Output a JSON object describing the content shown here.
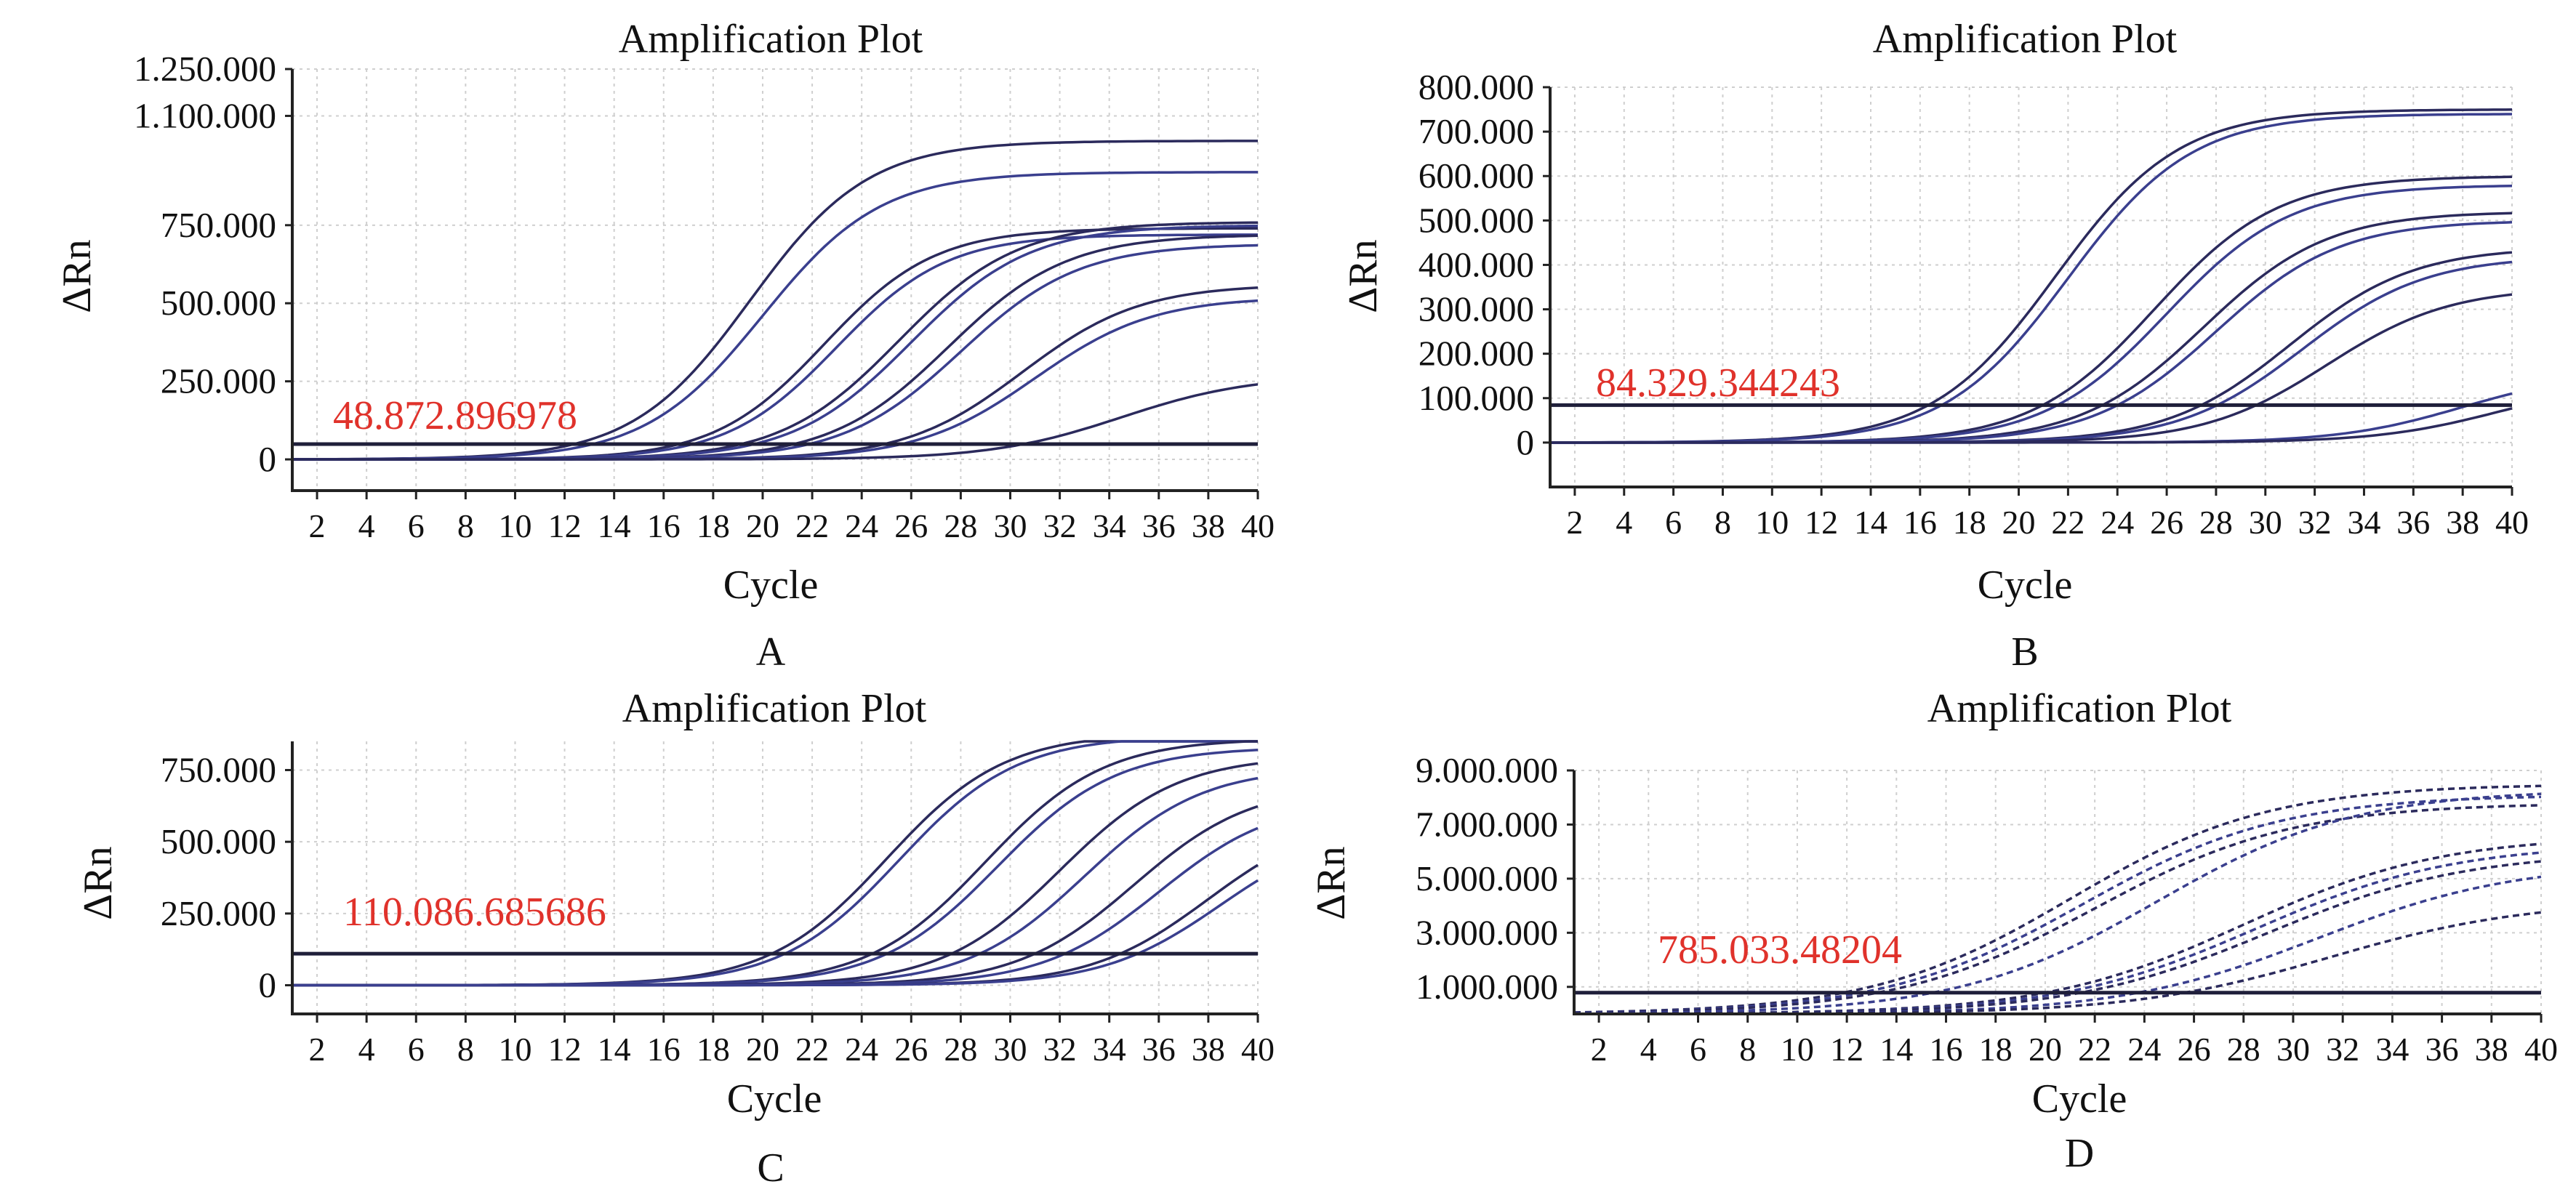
{
  "colors": {
    "curve": "#2b2a5c",
    "curve_alt": "#3a3f8e",
    "threshold": "#1f1f3a",
    "threshold_label": "#e0322b",
    "axis": "#222222",
    "grid": "#cfcfcf"
  },
  "chart_data": [
    {
      "type": "line",
      "panel_label": "A",
      "title": "Amplification Plot",
      "xlabel": "Cycle",
      "ylabel": "ΔRn",
      "xlim": [
        1,
        40
      ],
      "ylim": [
        -100000,
        1250000
      ],
      "x_ticks": [
        2,
        4,
        6,
        8,
        10,
        12,
        14,
        16,
        18,
        20,
        22,
        24,
        26,
        28,
        30,
        32,
        34,
        36,
        38,
        40
      ],
      "x_tick_labels": [
        "2",
        "4",
        "6",
        "8",
        "10",
        "12",
        "14",
        "16",
        "18",
        "20",
        "22",
        "24",
        "26",
        "28",
        "30",
        "32",
        "34",
        "36",
        "38",
        "40"
      ],
      "y_ticks": [
        0,
        250000,
        500000,
        750000,
        1100000,
        1250000
      ],
      "y_tick_labels": [
        "0",
        "250.000",
        "500.000",
        "750.000",
        "1.100.000",
        "1.250.000"
      ],
      "grid": true,
      "threshold": 48872.896978,
      "threshold_label": "48.872.896978",
      "line_style": "solid",
      "curves": [
        {
          "ct": 19.5,
          "max": 1020000,
          "k": 0.42
        },
        {
          "ct": 20.0,
          "max": 920000,
          "k": 0.42
        },
        {
          "ct": 22.5,
          "max": 740000,
          "k": 0.45
        },
        {
          "ct": 23.0,
          "max": 720000,
          "k": 0.45
        },
        {
          "ct": 25.5,
          "max": 760000,
          "k": 0.42
        },
        {
          "ct": 26.0,
          "max": 750000,
          "k": 0.42
        },
        {
          "ct": 27.5,
          "max": 720000,
          "k": 0.42
        },
        {
          "ct": 28.0,
          "max": 690000,
          "k": 0.42
        },
        {
          "ct": 30.5,
          "max": 560000,
          "k": 0.42
        },
        {
          "ct": 31.0,
          "max": 520000,
          "k": 0.42
        },
        {
          "ct": 34.5,
          "max": 270000,
          "k": 0.38
        }
      ]
    },
    {
      "type": "line",
      "panel_label": "B",
      "title": "Amplification Plot",
      "xlabel": "Cycle",
      "ylabel": "ΔRn",
      "xlim": [
        1,
        40
      ],
      "ylim": [
        -100000,
        800000
      ],
      "x_ticks": [
        2,
        4,
        6,
        8,
        10,
        12,
        14,
        16,
        18,
        20,
        22,
        24,
        26,
        28,
        30,
        32,
        34,
        36,
        38,
        40
      ],
      "x_tick_labels": [
        "2",
        "4",
        "6",
        "8",
        "10",
        "12",
        "14",
        "16",
        "18",
        "20",
        "22",
        "24",
        "26",
        "28",
        "30",
        "32",
        "34",
        "36",
        "38",
        "40"
      ],
      "y_ticks": [
        0,
        100000,
        200000,
        300000,
        400000,
        500000,
        600000,
        700000,
        800000
      ],
      "y_tick_labels": [
        "0",
        "100.000",
        "200.000",
        "300.000",
        "400.000",
        "500.000",
        "600.000",
        "700.000",
        "800.000"
      ],
      "grid": true,
      "threshold": 84329.344243,
      "threshold_label": "84.329.344243",
      "line_style": "solid",
      "curves": [
        {
          "ct": 21.5,
          "max": 750000,
          "k": 0.4
        },
        {
          "ct": 22.0,
          "max": 740000,
          "k": 0.4
        },
        {
          "ct": 25.5,
          "max": 600000,
          "k": 0.4
        },
        {
          "ct": 26.0,
          "max": 580000,
          "k": 0.4
        },
        {
          "ct": 27.5,
          "max": 520000,
          "k": 0.4
        },
        {
          "ct": 28.0,
          "max": 500000,
          "k": 0.4
        },
        {
          "ct": 31.0,
          "max": 440000,
          "k": 0.4
        },
        {
          "ct": 31.5,
          "max": 420000,
          "k": 0.4
        },
        {
          "ct": 32.5,
          "max": 350000,
          "k": 0.4
        },
        {
          "ct": 38.0,
          "max": 160000,
          "k": 0.4
        },
        {
          "ct": 39.5,
          "max": 140000,
          "k": 0.4
        }
      ]
    },
    {
      "type": "line",
      "panel_label": "C",
      "title": "Amplification Plot",
      "xlabel": "Cycle",
      "ylabel": "ΔRn",
      "xlim": [
        1,
        40
      ],
      "ylim": [
        -100000,
        850000
      ],
      "x_ticks": [
        2,
        4,
        6,
        8,
        10,
        12,
        14,
        16,
        18,
        20,
        22,
        24,
        26,
        28,
        30,
        32,
        34,
        36,
        38,
        40
      ],
      "x_tick_labels": [
        "2",
        "4",
        "6",
        "8",
        "10",
        "12",
        "14",
        "16",
        "18",
        "20",
        "22",
        "24",
        "26",
        "28",
        "30",
        "32",
        "34",
        "36",
        "38",
        "40"
      ],
      "y_ticks": [
        0,
        250000,
        500000,
        750000
      ],
      "y_tick_labels": [
        "0",
        "250.000",
        "500.000",
        "750.000"
      ],
      "grid": true,
      "threshold": 110086.685686,
      "threshold_label": "110.086.685686",
      "line_style": "solid",
      "curves": [
        {
          "ct": 25.0,
          "max": 880000,
          "k": 0.42
        },
        {
          "ct": 25.5,
          "max": 870000,
          "k": 0.42
        },
        {
          "ct": 29.0,
          "max": 860000,
          "k": 0.42
        },
        {
          "ct": 29.5,
          "max": 830000,
          "k": 0.42
        },
        {
          "ct": 32.0,
          "max": 800000,
          "k": 0.42
        },
        {
          "ct": 33.0,
          "max": 760000,
          "k": 0.42
        },
        {
          "ct": 35.0,
          "max": 700000,
          "k": 0.42
        },
        {
          "ct": 36.0,
          "max": 650000,
          "k": 0.42
        },
        {
          "ct": 38.0,
          "max": 600000,
          "k": 0.42
        },
        {
          "ct": 38.5,
          "max": 560000,
          "k": 0.42
        }
      ]
    },
    {
      "type": "line",
      "panel_label": "D",
      "title": "Amplification Plot",
      "xlabel": "Cycle",
      "ylabel": "ΔRn",
      "xlim": [
        1,
        40
      ],
      "ylim": [
        0,
        9000000
      ],
      "x_ticks": [
        2,
        4,
        6,
        8,
        10,
        12,
        14,
        16,
        18,
        20,
        22,
        24,
        26,
        28,
        30,
        32,
        34,
        36,
        38,
        40
      ],
      "x_tick_labels": [
        "2",
        "4",
        "6",
        "8",
        "10",
        "12",
        "14",
        "16",
        "18",
        "20",
        "22",
        "24",
        "26",
        "28",
        "30",
        "32",
        "34",
        "36",
        "38",
        "40"
      ],
      "y_ticks": [
        1000000,
        3000000,
        5000000,
        7000000,
        9000000
      ],
      "y_tick_labels": [
        "1.000.000",
        "3.000.000",
        "5.000.000",
        "7.000.000",
        "9.000.000"
      ],
      "grid": true,
      "threshold": 785033.48204,
      "threshold_label": "785.033.48204",
      "line_style": "dashed",
      "curves": [
        {
          "ct": 21.0,
          "max": 8500000,
          "k": 0.25
        },
        {
          "ct": 21.5,
          "max": 8100000,
          "k": 0.25
        },
        {
          "ct": 22.0,
          "max": 7800000,
          "k": 0.25
        },
        {
          "ct": 24.5,
          "max": 8300000,
          "k": 0.25
        },
        {
          "ct": 28.0,
          "max": 6600000,
          "k": 0.25
        },
        {
          "ct": 28.5,
          "max": 6300000,
          "k": 0.25
        },
        {
          "ct": 29.0,
          "max": 6000000,
          "k": 0.25
        },
        {
          "ct": 31.0,
          "max": 5600000,
          "k": 0.25
        },
        {
          "ct": 31.5,
          "max": 4200000,
          "k": 0.25
        }
      ]
    }
  ]
}
